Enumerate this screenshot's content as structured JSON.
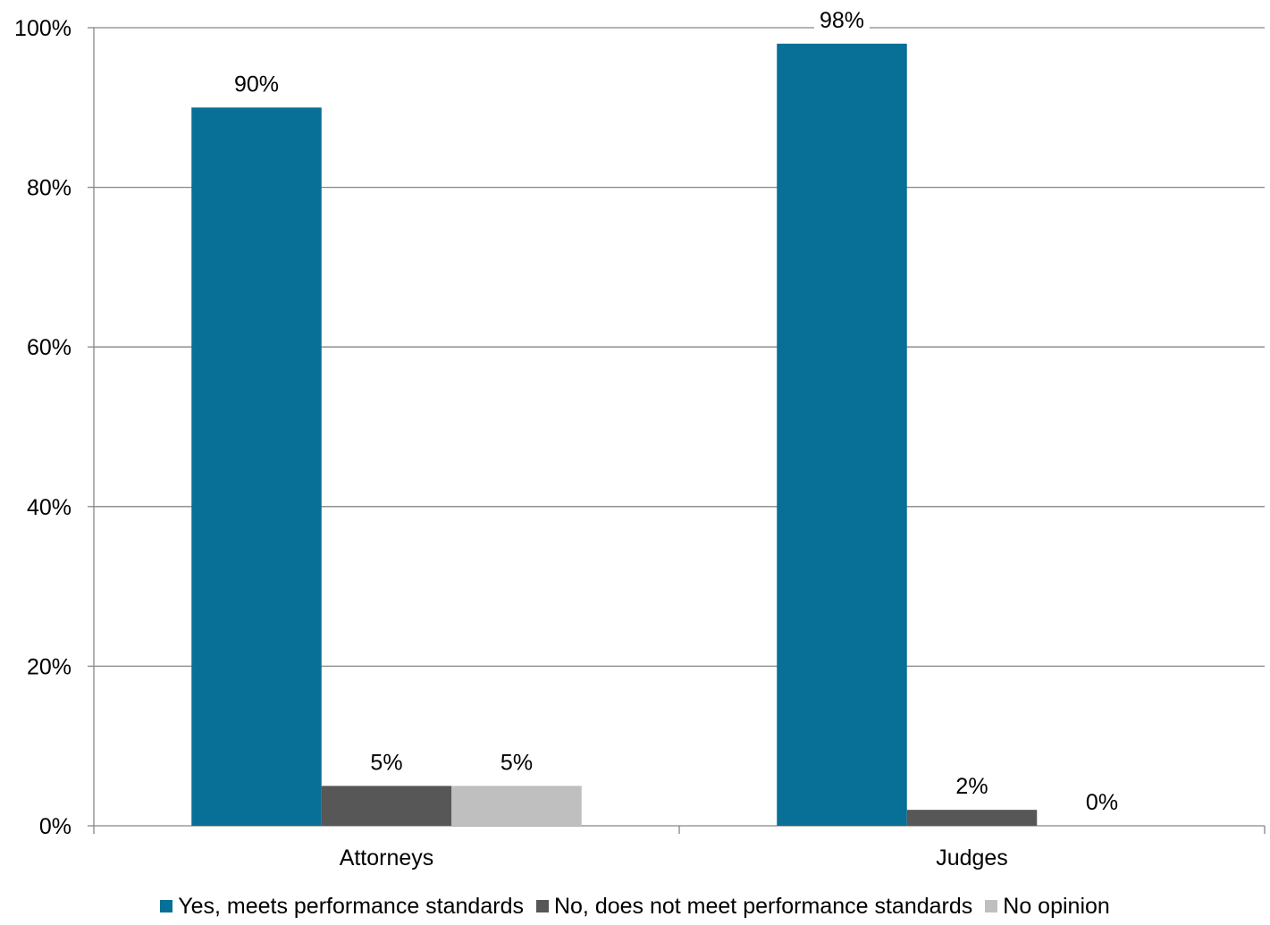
{
  "chart_data": {
    "type": "bar",
    "title": "",
    "xlabel": "",
    "ylabel": "",
    "categories": [
      "Attorneys",
      "Judges"
    ],
    "ylim": [
      0,
      100
    ],
    "yticks": [
      0,
      20,
      40,
      60,
      80,
      100
    ],
    "ytick_labels": [
      "0%",
      "20%",
      "40%",
      "60%",
      "80%",
      "100%"
    ],
    "grid": true,
    "legend_position": "bottom",
    "series": [
      {
        "name": "Yes, meets performance standards",
        "color": "#086f96",
        "values": [
          90,
          98
        ],
        "labels": [
          "90%",
          "98%"
        ]
      },
      {
        "name": "No, does not meet performance standards",
        "color": "#575757",
        "values": [
          5,
          2
        ],
        "labels": [
          "5%",
          "2%"
        ]
      },
      {
        "name": "No opinion",
        "color": "#bfbfbf",
        "values": [
          5,
          0
        ],
        "labels": [
          "5%",
          "0%"
        ]
      }
    ]
  }
}
